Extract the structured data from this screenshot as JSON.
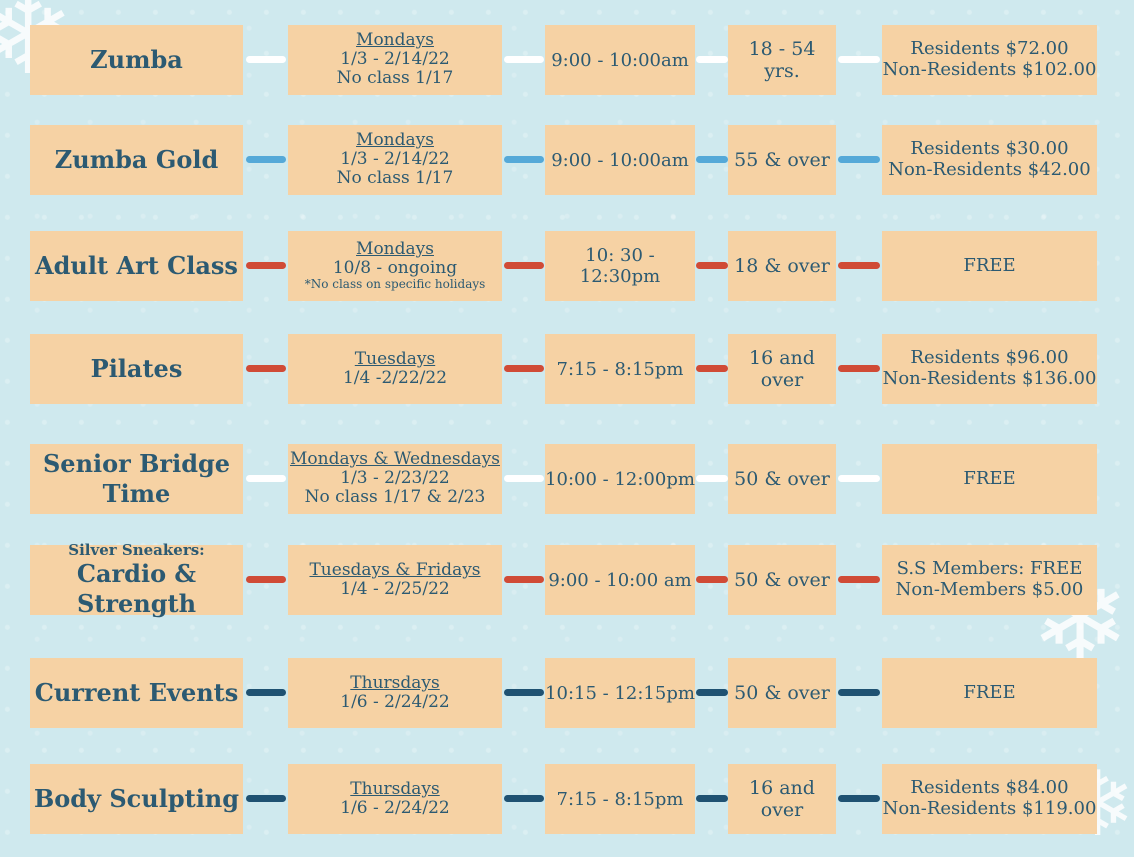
{
  "colors": {
    "background": "#cfe9ee",
    "box": "#f6d2a4",
    "text": "#2c5a72",
    "white": "#ffffff",
    "blue": "#55a9d8",
    "red": "#d04b36",
    "navy": "#1f5272"
  },
  "decorations": [
    "snowflake-icon",
    "snowflake-icon",
    "snowflake-icon"
  ],
  "classes": [
    {
      "name": "Zumba",
      "days": "Mondays",
      "dates": [
        "1/3 - 2/14/22",
        "No class 1/17"
      ],
      "time": "9:00 - 10:00am",
      "age": "18 - 54 yrs.",
      "price": [
        "Residents $72.00",
        "Non-Residents $102.00"
      ],
      "connector": "white"
    },
    {
      "name": "Zumba Gold",
      "days": "Mondays",
      "dates": [
        "1/3 - 2/14/22",
        "No class 1/17"
      ],
      "time": "9:00 - 10:00am",
      "age": "55 & over",
      "price": [
        "Residents $30.00",
        "Non-Residents $42.00"
      ],
      "connector": "blue"
    },
    {
      "name": "Adult Art Class",
      "days": "Mondays",
      "dates": [
        "10/8 - ongoing"
      ],
      "note": "*No class on specific holidays",
      "time": "10: 30 - 12:30pm",
      "age": "18 & over",
      "price": [
        "FREE"
      ],
      "connector": "red"
    },
    {
      "name": "Pilates",
      "days": "Tuesdays",
      "dates": [
        "1/4 -2/22/22"
      ],
      "time": "7:15 - 8:15pm",
      "age": "16 and over",
      "price": [
        "Residents $96.00",
        "Non-Residents $136.00"
      ],
      "connector": "red"
    },
    {
      "name": "Senior Bridge Time",
      "days": "Mondays & Wednesdays",
      "dates": [
        "1/3 - 2/23/22",
        "No class 1/17 & 2/23"
      ],
      "time": "10:00 - 12:00pm",
      "age": "50 & over",
      "price": [
        "FREE"
      ],
      "connector": "white"
    },
    {
      "name_small": "Silver Sneakers:",
      "name": "Cardio & Strength",
      "days": "Tuesdays & Fridays",
      "dates": [
        "1/4 - 2/25/22"
      ],
      "time": "9:00 - 10:00 am",
      "age": "50 & over",
      "price": [
        "S.S Members: FREE",
        "Non-Members $5.00"
      ],
      "connector": "red"
    },
    {
      "name": "Current Events",
      "days": "Thursdays",
      "dates": [
        "1/6 - 2/24/22"
      ],
      "time": "10:15 - 12:15pm",
      "age": "50 & over",
      "price": [
        "FREE"
      ],
      "connector": "navy"
    },
    {
      "name": "Body Sculpting",
      "days": "Thursdays",
      "dates": [
        "1/6 - 2/24/22"
      ],
      "time": "7:15 - 8:15pm",
      "age": "16 and over",
      "price": [
        "Residents $84.00",
        "Non-Residents $119.00"
      ],
      "connector": "navy"
    }
  ]
}
